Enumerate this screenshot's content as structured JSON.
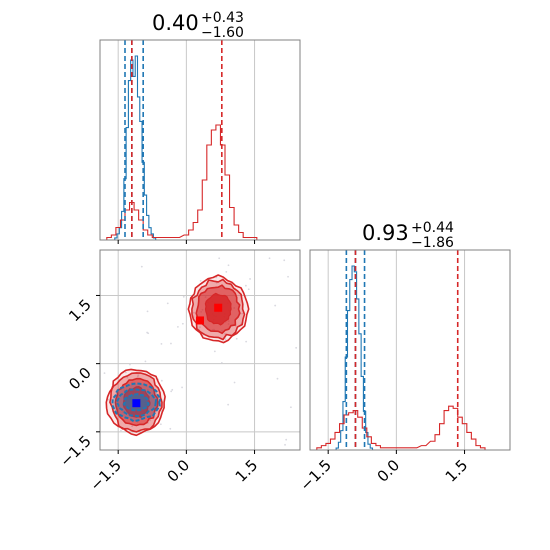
{
  "chart_data": {
    "type": "corner",
    "parameters": 2,
    "colors": {
      "blue": "#1f77b4",
      "red": "#d62728",
      "grid": "#c8c8c8",
      "frame": "#808080"
    },
    "titles": [
      {
        "median": "0.40",
        "plus": "+0.43",
        "minus": "−1.60"
      },
      {
        "median": "0.93",
        "plus": "+0.44",
        "minus": "−1.86"
      }
    ],
    "axis_range": [
      -1.9,
      2.5
    ],
    "ticks": [
      {
        "value": -1.5,
        "label": "−1.5"
      },
      {
        "value": 0.0,
        "label": "0.0"
      },
      {
        "value": 1.5,
        "label": "1.5"
      }
    ],
    "grid": true,
    "marginals": [
      {
        "param": 0,
        "blue_quantiles": [
          -1.35,
          -1.2,
          -0.95
        ],
        "red_quantiles": [
          -1.2,
          0.78
        ],
        "blue_hist": [
          [
            -1.55,
            1
          ],
          [
            -1.5,
            3
          ],
          [
            -1.45,
            6
          ],
          [
            -1.4,
            14
          ],
          [
            -1.35,
            30
          ],
          [
            -1.3,
            55
          ],
          [
            -1.25,
            78
          ],
          [
            -1.2,
            88
          ],
          [
            -1.15,
            80
          ],
          [
            -1.1,
            90
          ],
          [
            -1.05,
            70
          ],
          [
            -1.0,
            58
          ],
          [
            -0.95,
            38
          ],
          [
            -0.9,
            22
          ],
          [
            -0.85,
            12
          ],
          [
            -0.8,
            6
          ],
          [
            -0.75,
            3
          ],
          [
            -0.7,
            1
          ]
        ],
        "red_hist": [
          [
            -1.7,
            1
          ],
          [
            -1.6,
            2
          ],
          [
            -1.5,
            5
          ],
          [
            -1.4,
            8
          ],
          [
            -1.3,
            12
          ],
          [
            -1.2,
            15
          ],
          [
            -1.1,
            12
          ],
          [
            -1.0,
            8
          ],
          [
            -0.9,
            4
          ],
          [
            -0.8,
            2
          ],
          [
            -0.7,
            1
          ],
          [
            -0.4,
            1
          ],
          [
            -0.2,
            1
          ],
          [
            0.0,
            2
          ],
          [
            0.1,
            4
          ],
          [
            0.2,
            7
          ],
          [
            0.3,
            12
          ],
          [
            0.4,
            24
          ],
          [
            0.5,
            38
          ],
          [
            0.6,
            44
          ],
          [
            0.7,
            46
          ],
          [
            0.8,
            38
          ],
          [
            0.9,
            26
          ],
          [
            1.0,
            13
          ],
          [
            1.1,
            6
          ],
          [
            1.2,
            3
          ],
          [
            1.3,
            1
          ],
          [
            1.5,
            1
          ]
        ]
      },
      {
        "param": 1,
        "blue_quantiles": [
          -1.1,
          -0.9,
          -0.7
        ],
        "red_quantiles": [
          -0.9,
          1.35
        ],
        "blue_hist": [
          [
            -1.3,
            1
          ],
          [
            -1.25,
            4
          ],
          [
            -1.2,
            10
          ],
          [
            -1.15,
            25
          ],
          [
            -1.1,
            48
          ],
          [
            -1.05,
            72
          ],
          [
            -1.0,
            88
          ],
          [
            -0.95,
            95
          ],
          [
            -0.9,
            92
          ],
          [
            -0.85,
            78
          ],
          [
            -0.8,
            60
          ],
          [
            -0.75,
            38
          ],
          [
            -0.7,
            20
          ],
          [
            -0.65,
            9
          ],
          [
            -0.6,
            3
          ],
          [
            -0.55,
            1
          ]
        ],
        "red_hist": [
          [
            -1.7,
            1
          ],
          [
            -1.6,
            2
          ],
          [
            -1.5,
            3
          ],
          [
            -1.4,
            5
          ],
          [
            -1.3,
            8
          ],
          [
            -1.2,
            12
          ],
          [
            -1.1,
            16
          ],
          [
            -1.0,
            17
          ],
          [
            -0.9,
            18
          ],
          [
            -0.8,
            15
          ],
          [
            -0.7,
            10
          ],
          [
            -0.6,
            6
          ],
          [
            -0.5,
            3
          ],
          [
            -0.4,
            2
          ],
          [
            -0.3,
            1
          ],
          [
            0.2,
            1
          ],
          [
            0.4,
            1
          ],
          [
            0.6,
            2
          ],
          [
            0.8,
            4
          ],
          [
            0.9,
            7
          ],
          [
            1.0,
            12
          ],
          [
            1.1,
            18
          ],
          [
            1.2,
            20
          ],
          [
            1.3,
            19
          ],
          [
            1.4,
            15
          ],
          [
            1.5,
            12
          ],
          [
            1.6,
            8
          ],
          [
            1.7,
            5
          ],
          [
            1.8,
            2
          ],
          [
            1.9,
            1
          ]
        ]
      }
    ],
    "joint": {
      "params": [
        0,
        1
      ],
      "red_contour_centers": [
        [
          -1.1,
          -0.85
        ],
        [
          0.7,
          1.2
        ]
      ],
      "blue_contour_center": [
        -1.1,
        -0.85
      ],
      "markers": [
        {
          "color": "red",
          "x": 0.3,
          "y": 0.95
        },
        {
          "color": "red",
          "x": 0.7,
          "y": 1.23
        },
        {
          "color": "blue",
          "x": -1.1,
          "y": -0.87
        }
      ]
    }
  }
}
